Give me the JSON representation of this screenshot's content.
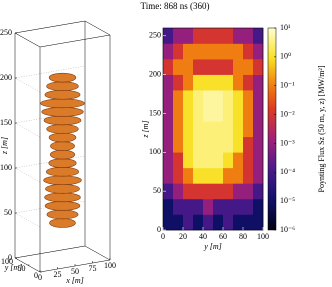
{
  "title": "Time: 868 ns (360)",
  "chart_data": [
    {
      "type": "box3d",
      "xlabel": "x [m]",
      "ylabel": "y [m]",
      "zlabel": "z [m]",
      "xlim": [
        0,
        100
      ],
      "ylim": [
        0,
        100
      ],
      "zlim": [
        0,
        250
      ],
      "xticks": [
        0,
        25,
        50,
        75,
        100
      ],
      "yticks": [
        0,
        50,
        100
      ],
      "zticks": [
        0,
        50,
        100,
        150,
        200,
        250
      ],
      "color": "#d9741f"
    },
    {
      "type": "heatmap",
      "xlabel": "y [m]",
      "ylabel": "z [m]",
      "xlim": [
        0,
        100
      ],
      "ylim": [
        0,
        260
      ],
      "xticks": [
        0,
        20,
        40,
        60,
        80,
        100
      ],
      "yticks": [
        0,
        50,
        100,
        150,
        200,
        250
      ],
      "x_bins": [
        0,
        10,
        20,
        30,
        40,
        50,
        60,
        70,
        80,
        90,
        100
      ],
      "y_bins": [
        0,
        20,
        40,
        60,
        80,
        100,
        120,
        140,
        160,
        180,
        200,
        220,
        240,
        260
      ],
      "values": [
        [
          1e-05,
          1e-05,
          0.0001,
          1e-05,
          0.0001,
          1e-05,
          0.0001,
          1e-05,
          1e-05,
          1e-05
        ],
        [
          1e-05,
          0.0001,
          0.0001,
          0.0001,
          0.001,
          0.0001,
          0.0001,
          0.0001,
          0.0001,
          1e-05
        ],
        [
          0.0001,
          0.001,
          0.01,
          0.01,
          0.01,
          0.01,
          0.01,
          0.001,
          0.001,
          0.0001
        ],
        [
          0.001,
          0.01,
          0.1,
          1,
          1,
          1,
          0.1,
          0.1,
          0.01,
          0.001
        ],
        [
          0.001,
          0.01,
          1,
          3,
          3,
          3,
          1,
          0.1,
          0.01,
          0.001
        ],
        [
          0.001,
          0.1,
          1,
          3,
          3,
          3,
          3,
          1,
          0.01,
          0.001
        ],
        [
          0.001,
          0.1,
          1,
          3,
          3,
          3,
          3,
          1,
          0.1,
          0.001
        ],
        [
          0.001,
          0.1,
          1,
          3,
          5,
          5,
          3,
          1,
          0.1,
          0.001
        ],
        [
          0.001,
          0.1,
          1,
          3,
          5,
          5,
          3,
          1,
          0.1,
          0.001
        ],
        [
          0.001,
          0.01,
          0.1,
          1,
          1,
          1,
          1,
          0.1,
          0.01,
          0.001
        ],
        [
          0.01,
          0.1,
          0.1,
          0.01,
          0.01,
          0.01,
          0.01,
          0.1,
          0.1,
          0.01
        ],
        [
          0.001,
          0.01,
          0.1,
          0.1,
          0.1,
          0.1,
          0.1,
          0.1,
          0.01,
          0.001
        ],
        [
          0.0001,
          0.001,
          0.001,
          0.01,
          0.01,
          0.01,
          0.01,
          0.001,
          0.001,
          0.0001
        ]
      ],
      "log_color": true,
      "clim": [
        1e-06,
        10
      ],
      "cticks": [
        {
          "value": 10,
          "label": "10¹"
        },
        {
          "value": 1,
          "label": "10⁰"
        },
        {
          "value": 0.1,
          "label": "10⁻¹"
        },
        {
          "value": 0.01,
          "label": "10⁻²"
        },
        {
          "value": 0.001,
          "label": "10⁻³"
        },
        {
          "value": 0.0001,
          "label": "10⁻⁴"
        },
        {
          "value": 1e-05,
          "label": "10⁻⁵"
        },
        {
          "value": 1e-06,
          "label": "10⁻⁶"
        }
      ],
      "colorbar_label": "Poynting Flux Sz (50 m, y, z) [MW/m²]"
    }
  ]
}
